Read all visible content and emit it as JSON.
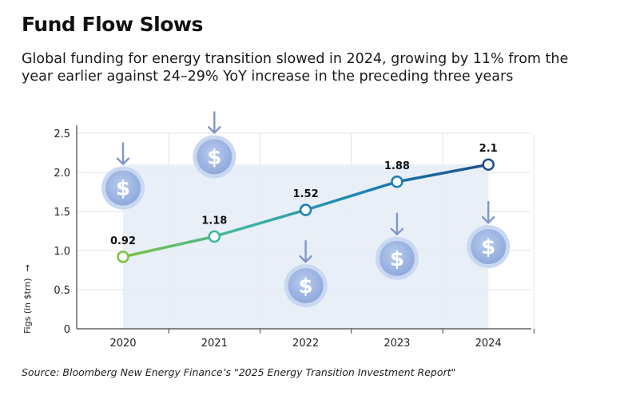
{
  "title": "Fund Flow Slows",
  "subtitle": "Global funding for energy transition slowed in 2024, growing by 11% from the year earlier against 24–29% YoY increase in the preceding three years",
  "source": "Source: Bloomberg New Energy Finance’s \"2025 Energy Transition Investment Report\"",
  "chart_data": {
    "type": "line",
    "categories": [
      "2020",
      "2021",
      "2022",
      "2023",
      "2024"
    ],
    "values": [
      0.92,
      1.18,
      1.52,
      1.88,
      2.1
    ],
    "data_labels": [
      "0.92",
      "1.18",
      "1.52",
      "1.88",
      "2.1"
    ],
    "ylabel": "Figs (in $trn)",
    "ylabel_arrow": "→",
    "ylim": [
      0,
      2.5
    ],
    "yticks": [
      "0",
      "0.5",
      "1.0",
      "1.5",
      "2.0",
      "2.5"
    ],
    "ytick_values": [
      0,
      0.5,
      1.0,
      1.5,
      2.0,
      2.5
    ],
    "grid": true,
    "area_max": 2.1,
    "line_gradient": [
      "#7cc242",
      "#3fb5a3",
      "#1d7fb4",
      "#1b4f8a"
    ],
    "decorations": [
      {
        "icon": "dollar-coin-icon",
        "arrow": "down-arrow-icon",
        "x": 2020,
        "y": 1.8
      },
      {
        "icon": "dollar-coin-icon",
        "arrow": "down-arrow-icon",
        "x": 2021,
        "y": 2.2
      },
      {
        "icon": "dollar-coin-icon",
        "arrow": "down-arrow-icon",
        "x": 2022,
        "y": 0.55
      },
      {
        "icon": "dollar-coin-icon",
        "arrow": "down-arrow-icon",
        "x": 2023,
        "y": 0.9
      },
      {
        "icon": "dollar-coin-icon",
        "arrow": "down-arrow-icon",
        "x": 2024,
        "y": 1.05
      }
    ],
    "colors": {
      "coin_fill": "#a9bfe6",
      "coin_ring": "#c9d8f2",
      "arrow": "#7f97c8",
      "area": "#e4ecf6",
      "grid": "#dde3ea"
    }
  }
}
